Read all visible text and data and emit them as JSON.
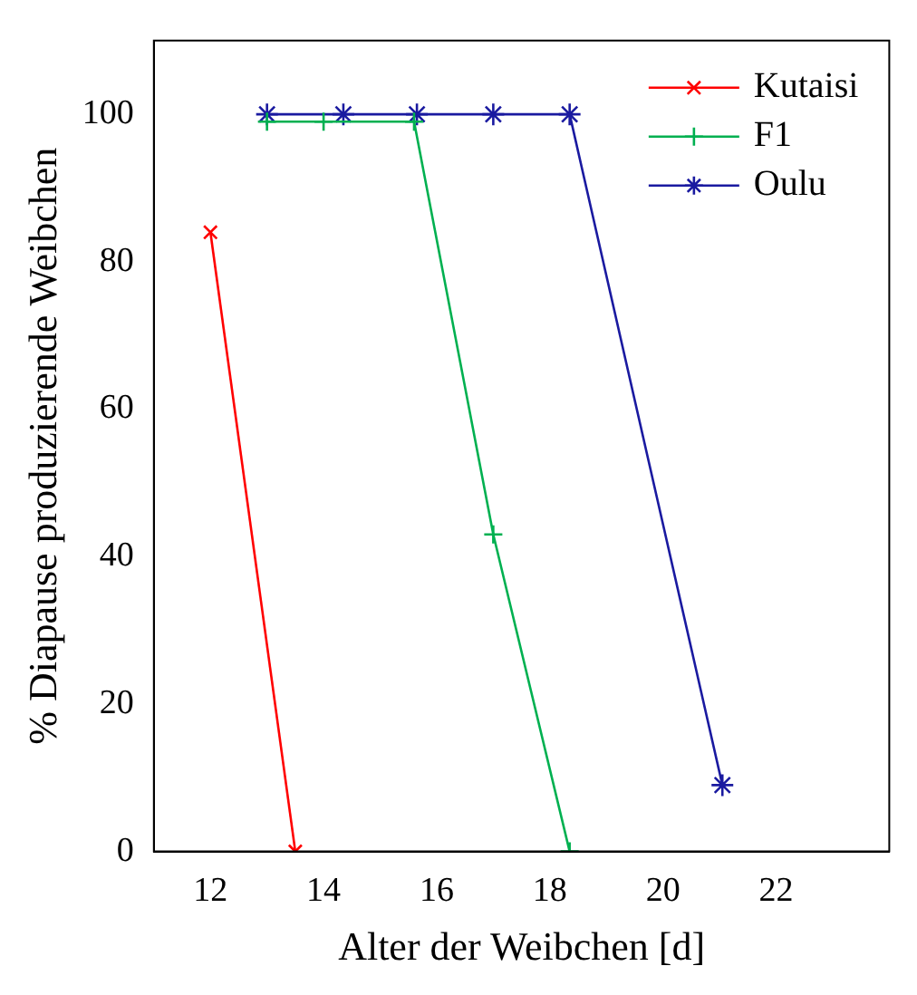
{
  "chart_data": {
    "type": "line",
    "xlabel": "Alter der Weibchen [d]",
    "ylabel": "% Diapause produzierende Weibchen",
    "xlim": [
      11,
      24
    ],
    "xticks": [
      12,
      14,
      16,
      18,
      20,
      22
    ],
    "ylim": [
      0,
      110
    ],
    "yticks": [
      0,
      20,
      40,
      60,
      80,
      100
    ],
    "grid": false,
    "legend": "top right",
    "marker": "cross",
    "series": [
      {
        "name": "Kutaisi",
        "color": "#ff0000",
        "x": [
          12,
          13.5
        ],
        "values": [
          84,
          0
        ]
      },
      {
        "name": "F1",
        "color": "#00b050",
        "x": [
          13,
          14,
          15.6,
          17,
          18.35
        ],
        "values": [
          99,
          99,
          99,
          43,
          0
        ]
      },
      {
        "name": "Oulu",
        "color": "#1a1aa0",
        "x": [
          13,
          14.35,
          15.65,
          17,
          18.35,
          21.05
        ],
        "values": [
          100,
          100,
          100,
          100,
          100,
          9
        ]
      }
    ]
  }
}
